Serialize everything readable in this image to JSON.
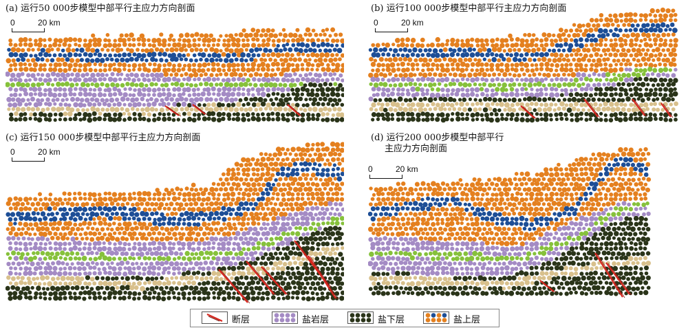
{
  "panels": [
    {
      "id": "a",
      "title": "(a) 运行50 000步模型中部平行主应力方向剖面",
      "scale_zero": "0",
      "scale_length": "20 km"
    },
    {
      "id": "b",
      "title": "(b) 运行100 000步模型中部平行主应力方向剖面",
      "scale_zero": "0",
      "scale_length": "20 km"
    },
    {
      "id": "c",
      "title": "(c) 运行150 000步模型中部平行主应力方向剖面",
      "scale_zero": "0",
      "scale_length": "20 km"
    },
    {
      "id": "d",
      "title_line1": "(d) 运行200 000步模型中部平行",
      "title_line2": "主应力方向剖面",
      "scale_zero": "0",
      "scale_length": "20 km"
    }
  ],
  "legend": [
    {
      "key": "fault",
      "label": "断层"
    },
    {
      "key": "salt",
      "label": "盐岩层"
    },
    {
      "key": "subsalt",
      "label": "盐下层"
    },
    {
      "key": "suprasalt",
      "label": "盐上层"
    }
  ],
  "colors": {
    "suprasalt": "#e4801f",
    "marker": "#1d4e96",
    "salt": "#a48bc4",
    "green_marker": "#86c13b",
    "subsalt": "#2a3419",
    "beige": "#d8c08c",
    "fault": "#d7261e"
  }
}
